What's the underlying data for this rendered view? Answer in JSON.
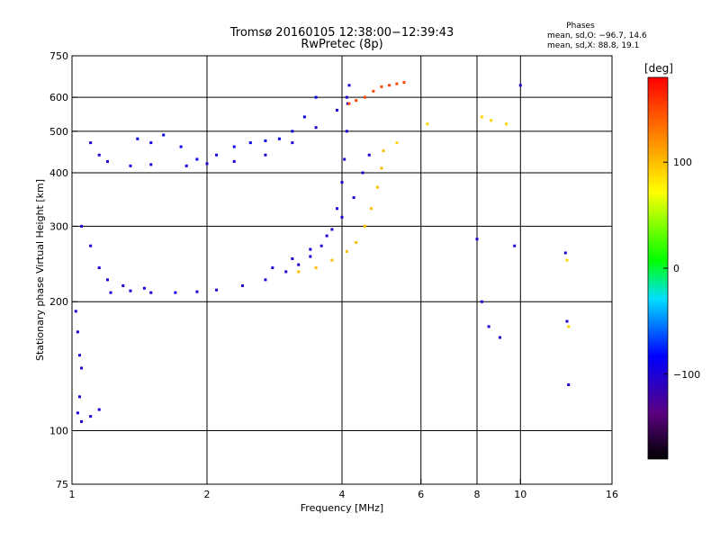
{
  "chart_data": {
    "type": "scatter",
    "title": "Tromsø 20160105 12:38:00−12:39:43",
    "subtitle": "RwPretec (8p)",
    "stats": {
      "heading": "Phases",
      "line_o": "mean, sd,O:  −96.7, 14.6",
      "line_x": "mean, sd,X:   88.8, 19.1"
    },
    "xlabel": "Frequency [MHz]",
    "ylabel": "Stationary phase Virtual Height [km]",
    "x_scale": "log2",
    "y_scale": "log",
    "xlim": [
      1,
      16
    ],
    "ylim": [
      75,
      750
    ],
    "x_ticks": [
      1,
      2,
      4,
      6,
      8,
      10,
      16
    ],
    "x_tick_labels": [
      "1",
      "2",
      "4",
      "6",
      "8",
      "10",
      "16"
    ],
    "x_grid": [
      2,
      4,
      6,
      8,
      10
    ],
    "y_ticks": [
      75,
      100,
      200,
      300,
      400,
      500,
      600,
      750
    ],
    "y_tick_labels": [
      "75",
      "100",
      "200",
      "300",
      "400",
      "500",
      "600",
      "750"
    ],
    "y_grid": [
      100,
      200,
      300,
      400,
      500,
      600
    ],
    "grid": true,
    "colorbar": {
      "label": "[deg]",
      "range": [
        -180,
        180
      ],
      "ticks": [
        100,
        0,
        -100
      ],
      "tick_labels": [
        "100",
        "0",
        "−100"
      ]
    },
    "traces": [
      {
        "name": "",
        "phase": -100,
        "points": [
          [
            1.22,
            210
          ],
          [
            1.35,
            212
          ],
          [
            1.5,
            210
          ],
          [
            1.7,
            210
          ],
          [
            1.9,
            211
          ],
          [
            2.1,
            213
          ],
          [
            2.4,
            218
          ],
          [
            2.7,
            225
          ],
          [
            3.0,
            235
          ],
          [
            3.2,
            244
          ],
          [
            3.4,
            255
          ],
          [
            3.6,
            270
          ],
          [
            3.8,
            295
          ],
          [
            3.9,
            330
          ],
          [
            4.0,
            380
          ],
          [
            4.05,
            430
          ],
          [
            4.1,
            500
          ],
          [
            4.12,
            580
          ],
          [
            4.15,
            640
          ]
        ]
      },
      {
        "name": "",
        "phase": -100,
        "points": [
          [
            2.8,
            240
          ],
          [
            3.1,
            252
          ],
          [
            3.4,
            265
          ],
          [
            3.7,
            285
          ],
          [
            4.0,
            315
          ],
          [
            4.25,
            350
          ],
          [
            4.45,
            400
          ],
          [
            4.6,
            440
          ]
        ]
      },
      {
        "name": "",
        "phase": 100,
        "points": [
          [
            3.2,
            235
          ],
          [
            3.5,
            240
          ],
          [
            3.8,
            250
          ],
          [
            4.1,
            262
          ],
          [
            4.3,
            275
          ],
          [
            4.5,
            300
          ],
          [
            4.65,
            330
          ],
          [
            4.8,
            370
          ],
          [
            4.9,
            410
          ],
          [
            4.95,
            450
          ]
        ]
      },
      {
        "name": "",
        "phase": -100,
        "points": [
          [
            1.05,
            300
          ],
          [
            1.1,
            270
          ],
          [
            1.15,
            240
          ],
          [
            1.2,
            225
          ],
          [
            1.3,
            218
          ],
          [
            1.45,
            215
          ]
        ]
      },
      {
        "name": "",
        "phase": -100,
        "points": [
          [
            1.1,
            470
          ],
          [
            1.15,
            440
          ],
          [
            1.2,
            425
          ],
          [
            1.35,
            415
          ],
          [
            1.5,
            418
          ],
          [
            1.8,
            415
          ],
          [
            2.0,
            420
          ],
          [
            2.3,
            425
          ],
          [
            2.7,
            440
          ],
          [
            3.1,
            470
          ],
          [
            3.5,
            510
          ],
          [
            3.9,
            560
          ],
          [
            4.1,
            600
          ]
        ]
      },
      {
        "name": "",
        "phase": -90,
        "points": [
          [
            1.4,
            480
          ],
          [
            1.5,
            470
          ],
          [
            1.6,
            490
          ],
          [
            1.75,
            460
          ],
          [
            1.9,
            430
          ],
          [
            2.1,
            440
          ],
          [
            2.3,
            460
          ],
          [
            2.5,
            470
          ],
          [
            2.7,
            475
          ],
          [
            2.9,
            480
          ],
          [
            3.1,
            500
          ],
          [
            3.3,
            540
          ],
          [
            3.5,
            600
          ]
        ]
      },
      {
        "name": "",
        "phase": -100,
        "points": [
          [
            1.02,
            190
          ],
          [
            1.03,
            170
          ],
          [
            1.04,
            150
          ],
          [
            1.05,
            140
          ],
          [
            1.04,
            120
          ],
          [
            1.03,
            110
          ],
          [
            1.05,
            105
          ],
          [
            1.1,
            108
          ],
          [
            1.15,
            112
          ]
        ]
      },
      {
        "name": "",
        "phase": 150,
        "points": [
          [
            4.15,
            580
          ],
          [
            4.3,
            590
          ],
          [
            4.5,
            600
          ],
          [
            4.7,
            620
          ],
          [
            4.9,
            635
          ],
          [
            5.1,
            640
          ],
          [
            5.3,
            645
          ],
          [
            5.5,
            650
          ]
        ]
      },
      {
        "name": "",
        "phase": -100,
        "points": [
          [
            8.0,
            280
          ],
          [
            8.2,
            200
          ],
          [
            8.5,
            175
          ],
          [
            9.0,
            165
          ],
          [
            9.7,
            270
          ],
          [
            10.0,
            640
          ],
          [
            12.6,
            260
          ],
          [
            12.7,
            180
          ],
          [
            12.8,
            128
          ]
        ]
      },
      {
        "name": "",
        "phase": 90,
        "points": [
          [
            8.2,
            540
          ],
          [
            8.6,
            530
          ],
          [
            9.3,
            520
          ],
          [
            12.7,
            250
          ],
          [
            12.8,
            175
          ],
          [
            5.3,
            470
          ],
          [
            6.2,
            520
          ]
        ]
      }
    ]
  }
}
